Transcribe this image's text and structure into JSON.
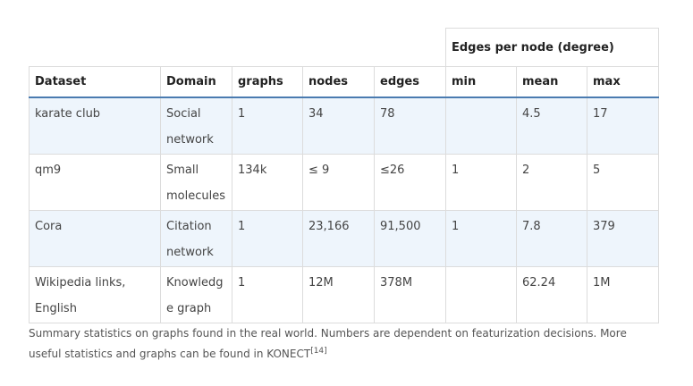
{
  "table": {
    "group_header": "Edges per node (degree)",
    "columns": [
      "Dataset",
      "Domain",
      "graphs",
      "nodes",
      "edges",
      "min",
      "mean",
      "max"
    ],
    "rows": [
      [
        "karate club",
        "Social network",
        "1",
        "34",
        "78",
        "",
        "4.5",
        "17"
      ],
      [
        "qm9",
        "Small molecules",
        "134k",
        "≤ 9",
        "≤26",
        "1",
        "2",
        "5"
      ],
      [
        "Cora",
        "Citation network",
        "1",
        "23,166",
        "91,500",
        "1",
        "7.8",
        "379"
      ],
      [
        "Wikipedia links, English",
        "Knowledge graph",
        "1",
        "12M",
        "378M",
        "",
        "62.24",
        "1M"
      ]
    ]
  },
  "caption": {
    "text": "Summary statistics on graphs found in the real world. Numbers are dependent on featurization decisions. More useful statistics and graphs can be found in KONECT",
    "ref": "[14]"
  }
}
